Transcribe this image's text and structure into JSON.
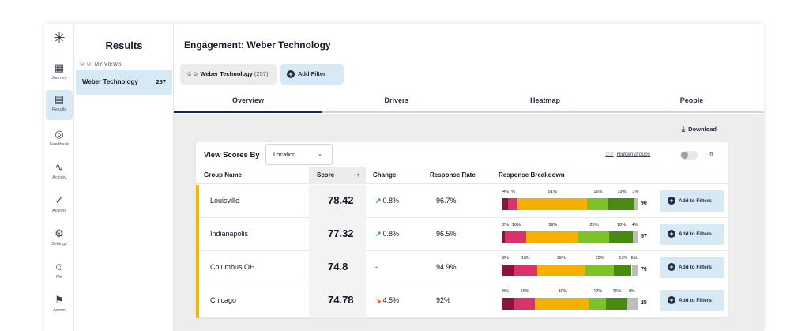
{
  "rail": {
    "logo": "✳",
    "items": [
      {
        "label": "Journey",
        "icon": "calendar-icon",
        "glyph": "▦"
      },
      {
        "label": "Results",
        "icon": "results-chart-icon",
        "glyph": "▤"
      },
      {
        "label": "Feedback",
        "icon": "feedback-bubble-icon",
        "glyph": "◎"
      },
      {
        "label": "Activity",
        "icon": "activity-pulse-icon",
        "glyph": "∿"
      },
      {
        "label": "Actions",
        "icon": "check-circle-icon",
        "glyph": "✓"
      },
      {
        "label": "Settings",
        "icon": "gear-icon",
        "glyph": "⚙"
      },
      {
        "label": "Me",
        "icon": "user-circle-icon",
        "glyph": "☺"
      },
      {
        "label": "Admin",
        "icon": "admin-icon",
        "glyph": "⚑"
      }
    ]
  },
  "results_panel": {
    "title": "Results",
    "my_views_label": "MY VIEWS",
    "view": {
      "name": "Weber Technology",
      "count": "257"
    }
  },
  "header": {
    "title": "Engagement:  Weber Technology",
    "view_chip": {
      "name": "Weber Technology",
      "count": "(257)"
    },
    "add_filter": "Add Filter"
  },
  "tabs": [
    "Overview",
    "Drivers",
    "Heatmap",
    "People"
  ],
  "download_label": "Download",
  "toolbar": {
    "view_scores_by": "View Scores By",
    "select_value": "Location",
    "hidden_groups": "Hidden groups",
    "toggle_label": "Off"
  },
  "table": {
    "columns": [
      "Group Name",
      "Score",
      "Change",
      "Response Rate",
      "Response Breakdown"
    ],
    "add_to_filters": "Add to Filters",
    "segment_colors": [
      "#8b1538",
      "#d9336a",
      "#f5b000",
      "#7dc228",
      "#4a8a12",
      "#bdbdbd"
    ],
    "rows": [
      {
        "group": "Louisville",
        "score": "78.42",
        "trend": "up",
        "change": "0.8%",
        "response_rate": "96.7%",
        "breakdown": [
          4,
          7,
          51,
          16,
          19,
          3
        ],
        "breakdown_labels": [
          "4%",
          "7%",
          "51%",
          "16%",
          "19%",
          "3%"
        ],
        "total": "90"
      },
      {
        "group": "Indianapolis",
        "score": "77.32",
        "trend": "up",
        "change": "0.8%",
        "response_rate": "96.5%",
        "breakdown": [
          2,
          16,
          39,
          23,
          18,
          4
        ],
        "breakdown_labels": [
          "2%",
          "16%",
          "39%",
          "23%",
          "18%",
          "4%"
        ],
        "total": "57"
      },
      {
        "group": "Columbus OH",
        "score": "74.8",
        "trend": "none",
        "change": "-",
        "response_rate": "94.9%",
        "breakdown": [
          8,
          18,
          35,
          22,
          13,
          5
        ],
        "breakdown_labels": [
          "8%",
          "18%",
          "35%",
          "22%",
          "13%",
          "5%"
        ],
        "total": "79"
      },
      {
        "group": "Chicago",
        "score": "74.78",
        "trend": "down",
        "change": "4.5%",
        "response_rate": "92%",
        "breakdown": [
          8,
          16,
          40,
          12,
          16,
          8
        ],
        "breakdown_labels": [
          "8%",
          "16%",
          "40%",
          "12%",
          "16%",
          "8%"
        ],
        "total": "25"
      }
    ]
  }
}
